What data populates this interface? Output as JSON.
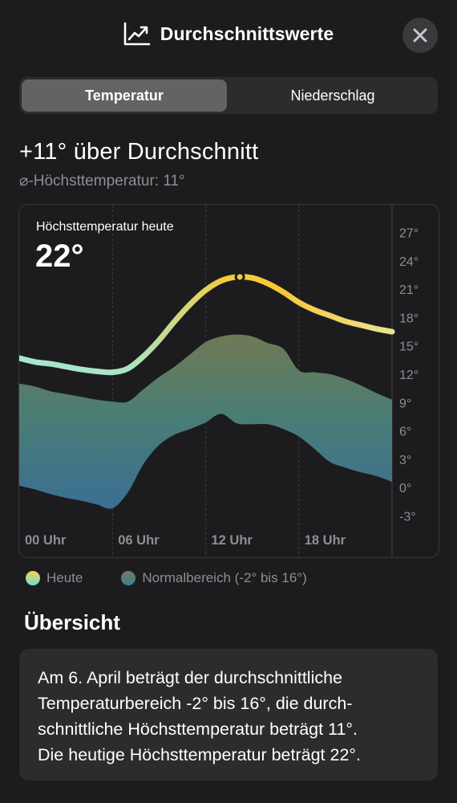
{
  "header": {
    "title": "Durchschnittswerte",
    "title_icon": "chart-line-icon",
    "close_icon": "close-icon"
  },
  "tabs": [
    {
      "label": "Temperatur",
      "selected": true
    },
    {
      "label": "Niederschlag",
      "selected": false
    }
  ],
  "headline": "+11° über Durchschnitt",
  "subline": "⌀-Höchsttemperatur: 11°",
  "chart": {
    "today_label": "Höchsttemperatur heute",
    "today_value": "22°"
  },
  "chart_data": {
    "type": "area",
    "x_labels": [
      "00 Uhr",
      "06 Uhr",
      "12 Uhr",
      "18 Uhr"
    ],
    "y_ticks": [
      "27°",
      "24°",
      "21°",
      "18°",
      "15°",
      "12°",
      "9°",
      "6°",
      "3°",
      "0°",
      "-3°"
    ],
    "ylim": [
      -4.5,
      28.5
    ],
    "xlim": [
      0,
      24
    ],
    "grid": "vertical dashed at 6-hour marks",
    "series": [
      {
        "name": "Heute",
        "color_start": "#7fdcd7",
        "color_end": "#f7c948",
        "x": [
          0,
          1,
          2,
          3,
          4,
          5,
          6,
          7,
          8,
          9,
          10,
          11,
          12,
          13,
          14,
          15,
          16,
          17,
          18,
          19,
          20,
          21,
          22,
          23,
          24
        ],
        "values": [
          13.7,
          13.3,
          13.1,
          12.8,
          12.5,
          12.3,
          12.2,
          12.6,
          13.9,
          15.6,
          17.6,
          19.4,
          20.9,
          21.9,
          22.3,
          22.2,
          21.6,
          20.7,
          19.6,
          18.8,
          18.2,
          17.6,
          17.2,
          16.8,
          16.5
        ]
      },
      {
        "name": "Normalbereich (-2° bis 16°)",
        "color_top": "#6e7f5c",
        "color_bottom": "#3e7d8f",
        "x": [
          0,
          1,
          2,
          3,
          4,
          5,
          6,
          7,
          8,
          9,
          10,
          11,
          12,
          13,
          14,
          15,
          16,
          17,
          18,
          19,
          20,
          21,
          22,
          23,
          24
        ],
        "upper": [
          11.0,
          10.7,
          10.2,
          9.9,
          9.6,
          9.3,
          9.1,
          9.1,
          10.4,
          11.7,
          12.8,
          14.1,
          15.4,
          16.0,
          16.2,
          16.0,
          15.3,
          14.7,
          12.4,
          12.2,
          12.0,
          11.5,
          10.8,
          10.0,
          9.3
        ],
        "lower": [
          0.2,
          -0.2,
          -0.7,
          -1.1,
          -1.4,
          -1.8,
          -2.2,
          -0.5,
          2.5,
          4.5,
          5.6,
          6.2,
          6.9,
          7.8,
          6.8,
          6.7,
          6.7,
          6.2,
          5.4,
          4.1,
          2.7,
          2.1,
          1.6,
          1.2,
          0.6
        ]
      }
    ],
    "marker": {
      "x": 14.2,
      "value": 22.3
    }
  },
  "legend": [
    {
      "label": "Heute",
      "icon": "today-legend-dot"
    },
    {
      "label": "Normalbereich (-2° bis 16°)",
      "icon": "normal-range-legend-dot"
    }
  ],
  "overview": {
    "title": "Übersicht",
    "lines": [
      "Am 6. April beträgt der durchschnittliche",
      "Temperaturbereich -2° bis 16°, die durch-",
      "schnittliche Höchsttemperatur beträgt 11°.",
      "Die heutige Höchsttemperatur beträgt 22°."
    ]
  }
}
